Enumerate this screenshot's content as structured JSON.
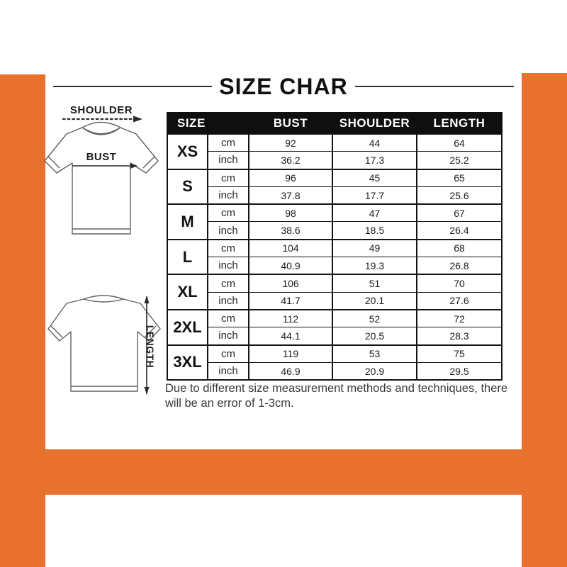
{
  "colors": {
    "frame_orange": "#E7712D",
    "header_bg": "#0F0F0F",
    "header_text": "#FFFFFF"
  },
  "title": "SIZE CHAR",
  "diagrams": {
    "shoulder_label": "SHOULDER",
    "bust_label": "BUST",
    "length_label": "LENGTH"
  },
  "table": {
    "headers": [
      "SIZE",
      "BUST",
      "SHOULDER",
      "LENGTH"
    ],
    "unit_labels": [
      "cm",
      "inch"
    ],
    "rows": [
      {
        "size": "XS",
        "cm": [
          "92",
          "44",
          "64"
        ],
        "inch": [
          "36.2",
          "17.3",
          "25.2"
        ]
      },
      {
        "size": "S",
        "cm": [
          "96",
          "45",
          "65"
        ],
        "inch": [
          "37.8",
          "17.7",
          "25.6"
        ]
      },
      {
        "size": "M",
        "cm": [
          "98",
          "47",
          "67"
        ],
        "inch": [
          "38.6",
          "18.5",
          "26.4"
        ]
      },
      {
        "size": "L",
        "cm": [
          "104",
          "49",
          "68"
        ],
        "inch": [
          "40.9",
          "19.3",
          "26.8"
        ]
      },
      {
        "size": "XL",
        "cm": [
          "106",
          "51",
          "70"
        ],
        "inch": [
          "41.7",
          "20.1",
          "27.6"
        ]
      },
      {
        "size": "2XL",
        "cm": [
          "112",
          "52",
          "72"
        ],
        "inch": [
          "44.1",
          "20.5",
          "28.3"
        ]
      },
      {
        "size": "3XL",
        "cm": [
          "119",
          "53",
          "75"
        ],
        "inch": [
          "46.9",
          "20.9",
          "29.5"
        ]
      }
    ]
  },
  "note_lines": [
    "Due to different size measurement methods and techniques, there",
    "will be an error of 1-3cm."
  ]
}
